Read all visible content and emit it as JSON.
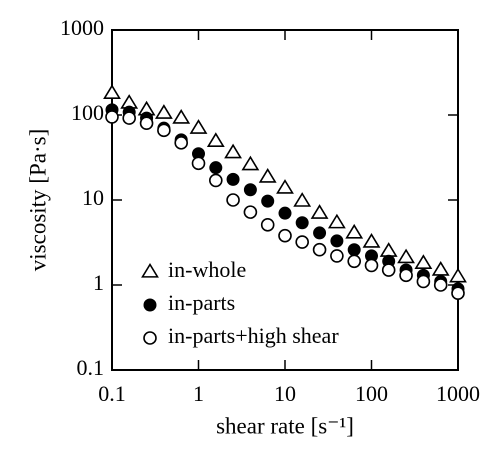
{
  "chart_data": {
    "type": "scatter",
    "x_label": "shear rate [s⁻¹]",
    "y_label": "viscosity [Pa·s]",
    "xscale": "log",
    "yscale": "log",
    "xlim": [
      0.1,
      1000
    ],
    "ylim": [
      0.1,
      1000
    ],
    "xticks": [
      0.1,
      1,
      10,
      100,
      1000
    ],
    "yticks": [
      0.1,
      1,
      10,
      100,
      1000
    ],
    "x": [
      0.1,
      0.158,
      0.251,
      0.398,
      0.631,
      1,
      1.585,
      2.51,
      3.98,
      6.31,
      10,
      15.8,
      25.1,
      39.8,
      63.1,
      100,
      158,
      251,
      398,
      631,
      1000
    ],
    "legend": "lower left",
    "series": [
      {
        "name": "in-whole",
        "color": "#000000",
        "marker": "open-triangle",
        "values": [
          180,
          138,
          115,
          105,
          92,
          70,
          49,
          36,
          26,
          18.6,
          13.8,
          9.7,
          7,
          5.4,
          4.1,
          3.2,
          2.5,
          2.1,
          1.8,
          1.5,
          1.25
        ]
      },
      {
        "name": "in-parts",
        "color": "#000000",
        "marker": "filled-circle",
        "values": [
          115,
          108,
          92,
          70,
          51,
          35,
          24,
          17.5,
          13.2,
          9.7,
          7,
          5.4,
          4.1,
          3.3,
          2.6,
          2.2,
          1.9,
          1.5,
          1.3,
          1.1,
          0.9
        ]
      },
      {
        "name": "in-parts+high shear",
        "color": "#000000",
        "marker": "open-circle",
        "values": [
          95,
          92,
          80,
          66,
          47,
          27,
          17,
          10,
          7.2,
          5.1,
          3.8,
          3.2,
          2.6,
          2.2,
          1.9,
          1.7,
          1.5,
          1.3,
          1.1,
          1.0,
          0.8
        ]
      }
    ]
  }
}
